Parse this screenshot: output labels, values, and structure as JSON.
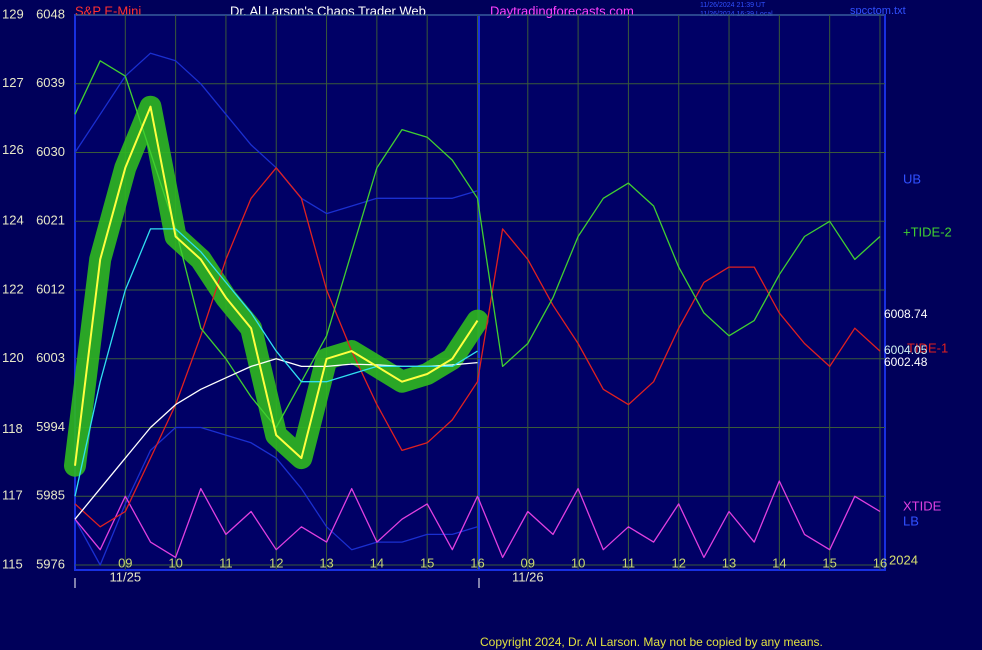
{
  "chart_data": {
    "type": "line",
    "title": "Dr. Al Larson's Chaos Trader Web",
    "symbol": "S&P E-Mini",
    "site": "Daytradingforecasts.com",
    "timestamps": [
      "11/26/2024 21:39 UT",
      "11/26/2024 16:39 Local"
    ],
    "file": "spcctom.txt",
    "copyright": "Copyright 2024, Dr. Al Larson. May not be copied by any means.",
    "year": "2024",
    "x": [
      0,
      0.5,
      1,
      1.5,
      2,
      2.5,
      3,
      3.5,
      4,
      4.5,
      5,
      5.5,
      6,
      6.5,
      7,
      7.5,
      8,
      8.5,
      9,
      9.5,
      10,
      10.5,
      11,
      11.5,
      12,
      12.5,
      13,
      13.5,
      14,
      14.5,
      15,
      15.5,
      16
    ],
    "xlim": [
      0,
      16.1
    ],
    "xticks": [
      {
        "value": 1,
        "label": "09"
      },
      {
        "value": 2,
        "label": "10"
      },
      {
        "value": 3,
        "label": "11"
      },
      {
        "value": 4,
        "label": "12"
      },
      {
        "value": 5,
        "label": "13"
      },
      {
        "value": 6,
        "label": "14"
      },
      {
        "value": 7,
        "label": "15"
      },
      {
        "value": 8,
        "label": "16"
      },
      {
        "value": 9,
        "label": "09"
      },
      {
        "value": 10,
        "label": "10"
      },
      {
        "value": 11,
        "label": "11"
      },
      {
        "value": 12,
        "label": "12"
      },
      {
        "value": 13,
        "label": "13"
      },
      {
        "value": 14,
        "label": "14"
      },
      {
        "value": 15,
        "label": "15"
      },
      {
        "value": 16,
        "label": "16"
      }
    ],
    "date_labels": [
      {
        "value": 1,
        "label": "11/25"
      },
      {
        "value": 9,
        "label": "11/26"
      }
    ],
    "ylim": [
      5976,
      6048
    ],
    "yticks": [
      5976,
      5985,
      5994,
      6003,
      6012,
      6021,
      6030,
      6039,
      6048
    ],
    "y2lim": [
      115,
      129
    ],
    "y2ticks": [
      {
        "value": 115,
        "label": "115"
      },
      {
        "value": 116.75,
        "label": "117"
      },
      {
        "value": 118.45,
        "label": "118"
      },
      {
        "value": 120.25,
        "label": "120"
      },
      {
        "value": 122,
        "label": "122"
      },
      {
        "value": 123.75,
        "label": "124"
      },
      {
        "value": 125.55,
        "label": "126"
      },
      {
        "value": 127.25,
        "label": "127"
      },
      {
        "value": 129,
        "label": "129"
      }
    ],
    "grid": true,
    "series": [
      {
        "name": "UB",
        "color": "#1a2fd0",
        "values": [
          6030,
          6035,
          6040,
          6043,
          6042,
          6039,
          6035,
          6031,
          6028,
          6024,
          6022,
          6023,
          6024,
          6024,
          6024,
          6024,
          6025,
          null,
          null,
          null,
          null,
          null,
          null,
          null,
          null,
          null,
          null,
          null,
          null,
          null,
          null,
          null,
          null
        ]
      },
      {
        "name": "LB",
        "color": "#1a2fd0",
        "values": [
          5982,
          5976,
          5984,
          5991,
          5994,
          5994,
          5993,
          5992,
          5990,
          5986,
          5981,
          5978,
          5979,
          5979,
          5980,
          5980,
          5981,
          null,
          null,
          null,
          null,
          null,
          null,
          null,
          null,
          null,
          null,
          null,
          null,
          null,
          null,
          null,
          null
        ]
      },
      {
        "name": "XTIDE",
        "color": "#e040e0",
        "values": [
          5982,
          5978,
          5985,
          5979,
          5977,
          5986,
          5980,
          5983,
          5978,
          5981,
          5979,
          5986,
          5979,
          5982,
          5984,
          5978,
          5985,
          5977,
          5983,
          5980,
          5986,
          5978,
          5981,
          5979,
          5984,
          5977,
          5983,
          5979,
          5987,
          5980,
          5978,
          5985,
          5983
        ]
      },
      {
        "name": "TIDE-1",
        "color": "#e02020",
        "values": [
          5984,
          5981,
          5983,
          5990,
          5997,
          6006,
          6016,
          6024,
          6028,
          6024,
          6012,
          6004,
          5997,
          5991,
          5992,
          5995,
          6000,
          6020,
          6016,
          6010,
          6005,
          5999,
          5997,
          6000,
          6007,
          6013,
          6015,
          6015,
          6009,
          6005,
          6002,
          6007,
          6004
        ]
      },
      {
        "name": "+TIDE-2",
        "color": "#40d030",
        "values": [
          6035,
          6042,
          6040,
          6030,
          6020,
          6007,
          6003,
          5998,
          5994,
          6000,
          6006,
          6017,
          6028,
          6033,
          6032,
          6029,
          6024,
          6002,
          6005,
          6011,
          6019,
          6024,
          6026,
          6023,
          6015,
          6009,
          6006,
          6008,
          6014,
          6019,
          6021,
          6016,
          6019
        ]
      },
      {
        "color": "#ffffff",
        "end_value": 6002.48,
        "values": [
          5982,
          5986,
          5990,
          5994,
          5997,
          5999,
          6000.5,
          6002,
          6003,
          6002,
          6002,
          6002.3,
          6002.2,
          6002,
          6002,
          6002.2,
          6002.5,
          null,
          null,
          null,
          null,
          null,
          null,
          null,
          null,
          null,
          null,
          null,
          null,
          null,
          null,
          null,
          null
        ]
      },
      {
        "color": "#30e0f0",
        "end_value": 6004.05,
        "values": [
          5985,
          6000,
          6012,
          6020,
          6020,
          6017,
          6013,
          6009,
          6004,
          6000,
          6000,
          6001,
          6002,
          6002,
          6002,
          6002,
          6004,
          null,
          null,
          null,
          null,
          null,
          null,
          null,
          null,
          null,
          null,
          null,
          null,
          null,
          null,
          null,
          null
        ]
      },
      {
        "color": "#ffff40",
        "halo_color": "#2fb81f",
        "end_value": 6008.74,
        "values": [
          5989,
          6016,
          6028,
          6036,
          6019,
          6016,
          6011,
          6007,
          5993,
          5990,
          6003,
          6004,
          6002,
          6000,
          6001,
          6003,
          6008,
          null,
          null,
          null,
          null,
          null,
          null,
          null,
          null,
          null,
          null,
          null,
          null,
          null,
          null,
          null,
          null
        ]
      }
    ]
  }
}
